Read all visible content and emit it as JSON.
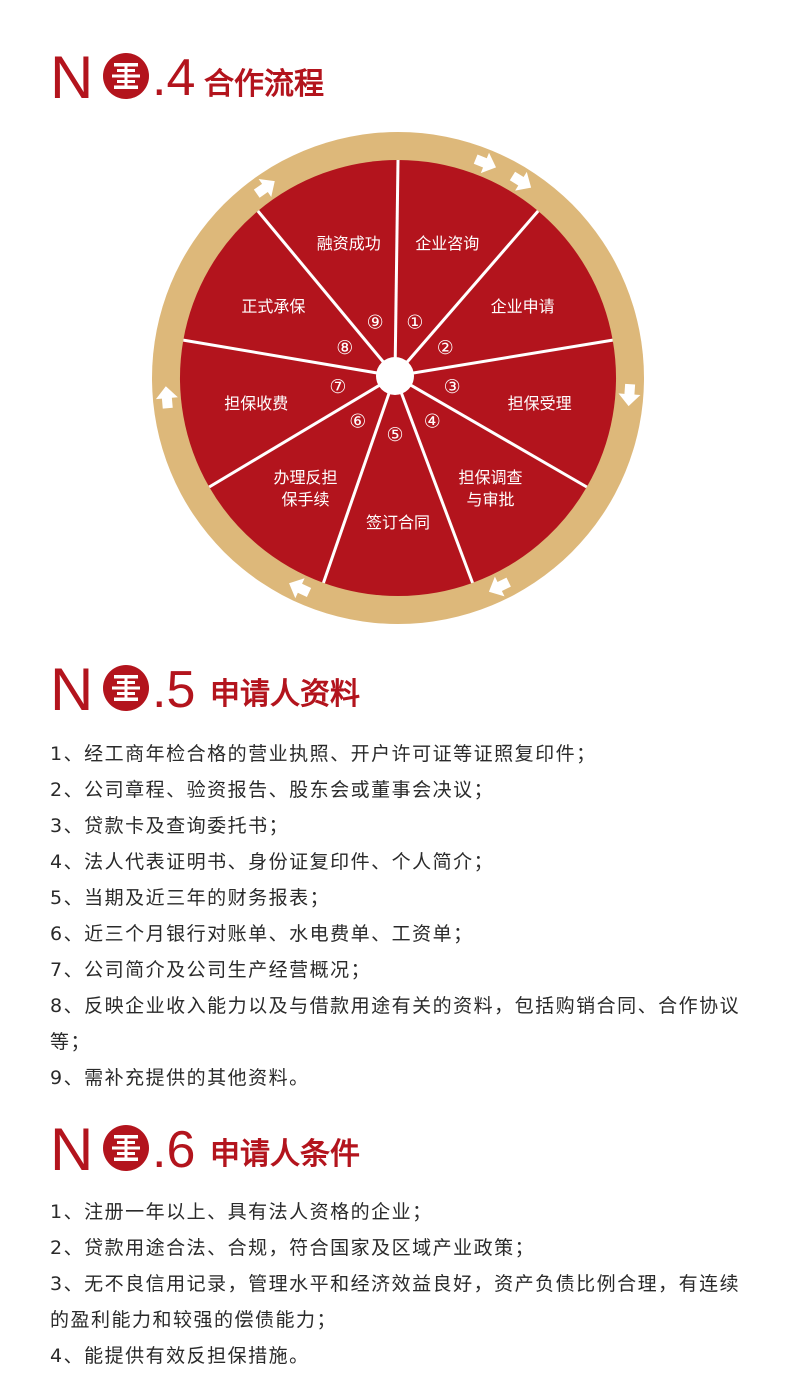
{
  "sections": {
    "process": {
      "n": "N",
      "number": ".4",
      "title": "合作流程"
    },
    "materials": {
      "n": "N",
      "number": ".5",
      "title": "申请人资料"
    },
    "conditions": {
      "n": "N",
      "number": ".6",
      "title": "申请人条件"
    }
  },
  "wheel": {
    "segments": [
      {
        "marker": "①",
        "lines": [
          "企业咨询"
        ]
      },
      {
        "marker": "②",
        "lines": [
          "企业申请"
        ]
      },
      {
        "marker": "③",
        "lines": [
          "担保受理"
        ]
      },
      {
        "marker": "④",
        "lines": [
          "担保调查",
          "与审批"
        ]
      },
      {
        "marker": "⑤",
        "lines": [
          "签订合同"
        ]
      },
      {
        "marker": "⑥",
        "lines": [
          "办理反担",
          "保手续"
        ]
      },
      {
        "marker": "⑦",
        "lines": [
          "担保收费"
        ]
      },
      {
        "marker": "⑧",
        "lines": [
          "正式承保"
        ]
      },
      {
        "marker": "⑨",
        "lines": [
          "融资成功"
        ]
      }
    ],
    "colors": {
      "segment": "#b3141d",
      "ring": "#ddb87a",
      "divider": "#ffffff"
    }
  },
  "materials_items": [
    "1、经工商年检合格的营业执照、开户许可证等证照复印件；",
    "2、公司章程、验资报告、股东会或董事会决议；",
    "3、贷款卡及查询委托书；",
    "4、法人代表证明书、身份证复印件、个人简介；",
    "5、当期及近三年的财务报表；",
    "6、近三个月银行对账单、水电费单、工资单；",
    "7、公司简介及公司生产经营概况；",
    "8、反映企业收入能力以及与借款用途有关的资料，包括购销合同、合作协议等；",
    "9、需补充提供的其他资料。"
  ],
  "conditions_items": [
    "1、注册一年以上、具有法人资格的企业；",
    "2、贷款用途合法、合规，符合国家及区域产业政策；",
    "3、无不良信用记录，管理水平和经济效益良好，资产负债比例合理，有连续的盈利能力和较强的偿债能力；",
    "4、能提供有效反担保措施。"
  ],
  "accent_color": "#b3141d"
}
